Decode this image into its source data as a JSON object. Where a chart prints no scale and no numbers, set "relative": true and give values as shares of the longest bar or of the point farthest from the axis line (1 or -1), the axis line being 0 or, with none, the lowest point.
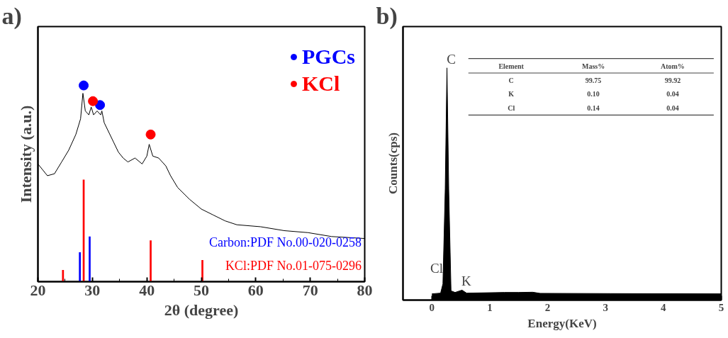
{
  "chart_data": [
    {
      "type": "line",
      "title": "a)",
      "xlabel": "2θ (degree)",
      "ylabel": "Intensity (a.u.)",
      "relative": true,
      "xlim": [
        20,
        80
      ],
      "xticks": [
        20,
        30,
        40,
        50,
        60,
        70,
        80
      ],
      "tick_labels": "x",
      "legend": "top right",
      "grid": false,
      "series": [
        {
          "color": "#000000",
          "x": [
            20,
            21.74,
            23.04,
            24.35,
            25.65,
            26.96,
            27.83,
            28.26,
            28.7,
            29.35,
            29.78,
            30.22,
            30.87,
            31.52,
            31.74,
            32.17,
            33.04,
            33.91,
            34.78,
            35.65,
            36.52,
            37.83,
            39.13,
            40.0,
            40.43,
            41.09,
            42.17,
            43.48,
            44.35,
            45.65,
            47.83,
            50.0,
            52.17,
            54.35,
            56.52,
            60.87,
            65.22,
            69.57,
            73.91,
            80
          ],
          "values": [
            0.6,
            0.54,
            0.55,
            0.61,
            0.67,
            0.75,
            0.83,
            0.96,
            0.87,
            0.85,
            0.89,
            0.85,
            0.87,
            0.85,
            0.87,
            0.81,
            0.76,
            0.71,
            0.66,
            0.63,
            0.61,
            0.63,
            0.6,
            0.64,
            0.7,
            0.64,
            0.63,
            0.59,
            0.54,
            0.48,
            0.42,
            0.37,
            0.34,
            0.31,
            0.29,
            0.28,
            0.26,
            0.25,
            0.23,
            0.22
          ]
        },
        {
          "type": "bar",
          "name": "Carbon:PDF No.00-020-0258",
          "color": "#0000ff",
          "x": [
            27.7,
            29.5
          ],
          "values": [
            0.15,
            0.23
          ]
        },
        {
          "type": "bar",
          "name": "KCl:PDF No.01-075-0296",
          "color": "#ff0000",
          "x": [
            24.6,
            28.4,
            40.7,
            50.2
          ],
          "values": [
            0.06,
            0.52,
            0.21,
            0.11
          ]
        },
        {
          "type": "scatter",
          "name": "PGCs",
          "color": "#0000ff",
          "x": [
            28.4,
            31.4
          ],
          "values": [
            1.0,
            0.9
          ]
        },
        {
          "type": "scatter",
          "name": "KCl",
          "color": "#ff0000",
          "x": [
            30.1,
            40.7
          ],
          "values": [
            0.92,
            0.75
          ]
        }
      ]
    },
    {
      "type": "area",
      "title": "b)",
      "xlabel": "Energy(KeV)",
      "ylabel": "Counts(cps)",
      "relative": true,
      "xlim": [
        -0.5,
        5
      ],
      "xticks": [
        0,
        1,
        2,
        3,
        4,
        5
      ],
      "tick_labels": "x",
      "grid": false,
      "series": [
        {
          "color": "#000000",
          "x": [
            0,
            0.15,
            0.19,
            0.23,
            0.26,
            0.29,
            0.33,
            0.4,
            0.52,
            0.6,
            1.25,
            1.5,
            1.74,
            1.87,
            3.09,
            5.0
          ],
          "values": [
            0.027,
            0.03,
            0.07,
            0.48,
            1.0,
            0.48,
            0.04,
            0.033,
            0.043,
            0.03,
            0.033,
            0.033,
            0.034,
            0.029,
            0.028,
            0.027
          ]
        }
      ],
      "annotations": [
        {
          "text": "C",
          "x": 0.26,
          "y": 1.0
        },
        {
          "text": "Cl",
          "x": 0.18,
          "y": 0.1
        },
        {
          "text": "K",
          "x": 0.52,
          "y": 0.043
        },
        "Element",
        "Mass%",
        "Atom%",
        "C",
        "99.75",
        "99.92",
        "K",
        "0.10",
        "0.04",
        "Cl",
        "0.14",
        "0.04"
      ]
    }
  ]
}
